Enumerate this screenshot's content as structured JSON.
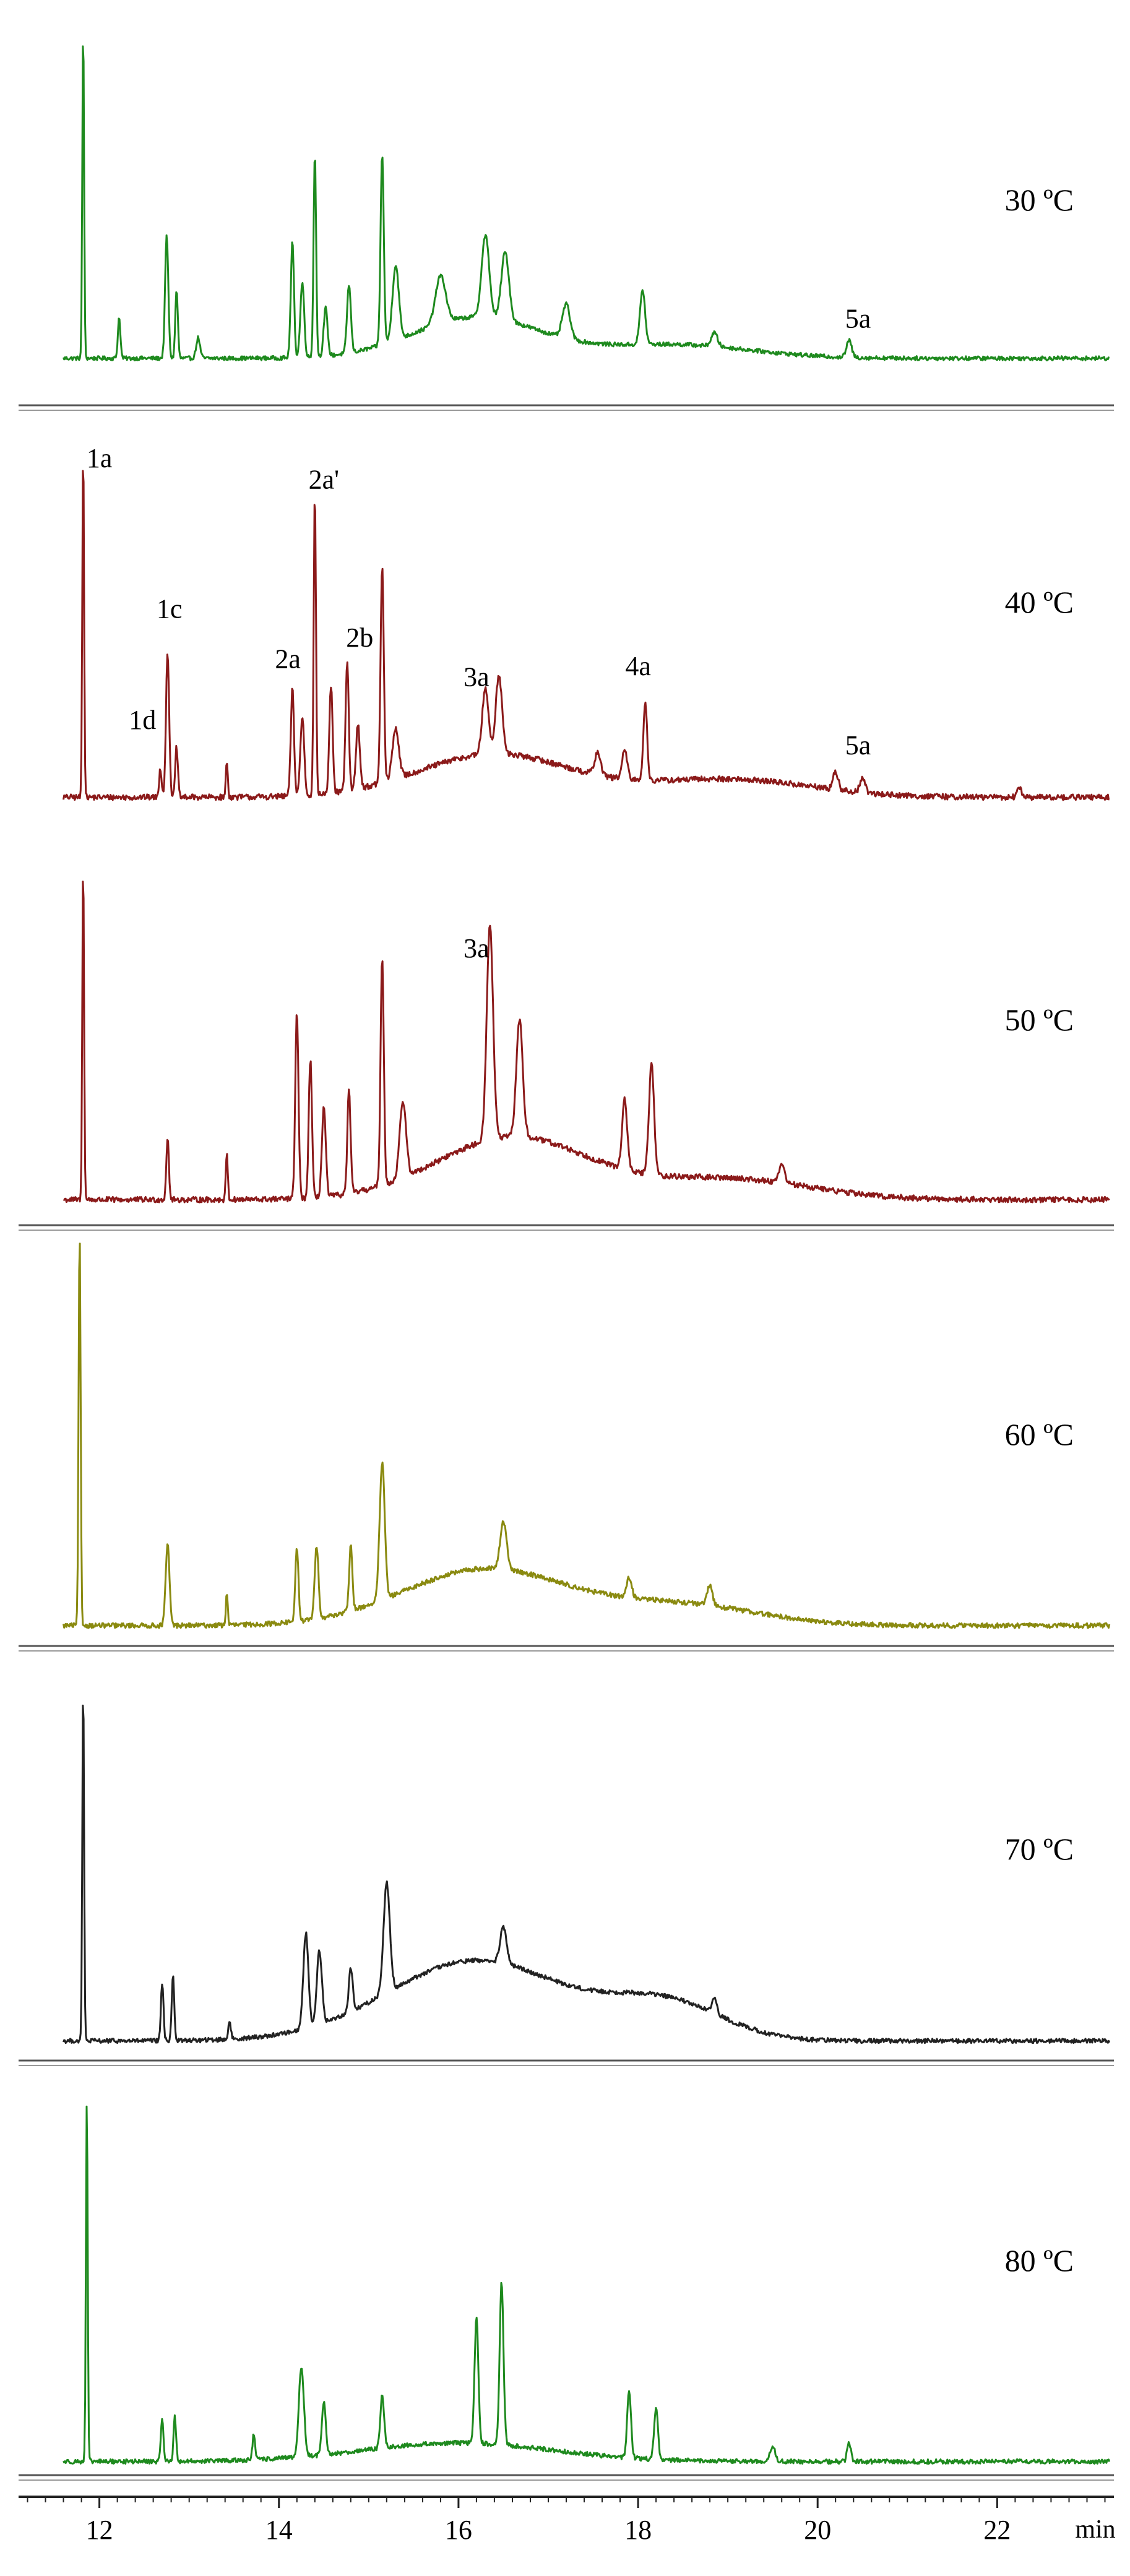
{
  "chart_data": {
    "type": "line",
    "xlabel": "",
    "x_unit": "min",
    "xlim": [
      11.1,
      23.3
    ],
    "x_ticks": [
      12,
      14,
      16,
      18,
      20,
      22
    ],
    "x_tick_labels": [
      "12",
      "14",
      "16",
      "18",
      "20",
      "22"
    ],
    "grid": false,
    "legend": "none",
    "panels": [
      {
        "label": "30 ºC",
        "color": "#1e8a1e",
        "baseline": 0.02,
        "noise": 0.006,
        "peaks": [
          {
            "t": 11.82,
            "h": 0.98,
            "w": 0.014
          },
          {
            "t": 12.22,
            "h": 0.12,
            "w": 0.02
          },
          {
            "t": 12.75,
            "h": 0.36,
            "w": 0.025
          },
          {
            "t": 12.86,
            "h": 0.2,
            "w": 0.02
          },
          {
            "t": 13.1,
            "h": 0.06,
            "w": 0.03
          },
          {
            "t": 14.15,
            "h": 0.34,
            "w": 0.025
          },
          {
            "t": 14.26,
            "h": 0.22,
            "w": 0.03
          },
          {
            "t": 14.4,
            "h": 0.6,
            "w": 0.02
          },
          {
            "t": 14.52,
            "h": 0.14,
            "w": 0.03
          },
          {
            "t": 14.78,
            "h": 0.2,
            "w": 0.03
          },
          {
            "t": 15.15,
            "h": 0.56,
            "w": 0.025
          },
          {
            "t": 15.3,
            "h": 0.22,
            "w": 0.05
          },
          {
            "t": 15.8,
            "h": 0.14,
            "w": 0.08
          },
          {
            "t": 16.3,
            "h": 0.24,
            "w": 0.06
          },
          {
            "t": 16.52,
            "h": 0.2,
            "w": 0.06
          },
          {
            "t": 17.2,
            "h": 0.1,
            "w": 0.06
          },
          {
            "t": 18.05,
            "h": 0.16,
            "w": 0.04
          },
          {
            "t": 18.85,
            "h": 0.04,
            "w": 0.05
          },
          {
            "t": 20.35,
            "h": 0.05,
            "w": 0.04
          }
        ],
        "humps": [
          {
            "t": 16.2,
            "h": 0.12,
            "w": 1.0
          },
          {
            "t": 18.4,
            "h": 0.04,
            "w": 1.2
          }
        ],
        "annotations": [
          {
            "text": "5a",
            "t": 20.45,
            "y": 0.11
          }
        ]
      },
      {
        "label": "40 ºC",
        "color": "#8b1a1a",
        "baseline": 0.02,
        "noise": 0.008,
        "peaks": [
          {
            "t": 11.82,
            "h": 0.98,
            "w": 0.014
          },
          {
            "t": 12.68,
            "h": 0.08,
            "w": 0.02
          },
          {
            "t": 12.76,
            "h": 0.4,
            "w": 0.025
          },
          {
            "t": 12.86,
            "h": 0.14,
            "w": 0.02
          },
          {
            "t": 13.42,
            "h": 0.1,
            "w": 0.015
          },
          {
            "t": 14.15,
            "h": 0.3,
            "w": 0.025
          },
          {
            "t": 14.26,
            "h": 0.22,
            "w": 0.03
          },
          {
            "t": 14.4,
            "h": 0.84,
            "w": 0.018
          },
          {
            "t": 14.58,
            "h": 0.3,
            "w": 0.025
          },
          {
            "t": 14.76,
            "h": 0.36,
            "w": 0.025
          },
          {
            "t": 14.88,
            "h": 0.18,
            "w": 0.03
          },
          {
            "t": 15.15,
            "h": 0.6,
            "w": 0.025
          },
          {
            "t": 15.3,
            "h": 0.14,
            "w": 0.05
          },
          {
            "t": 16.3,
            "h": 0.18,
            "w": 0.05
          },
          {
            "t": 16.45,
            "h": 0.22,
            "w": 0.05
          },
          {
            "t": 17.55,
            "h": 0.06,
            "w": 0.05
          },
          {
            "t": 17.85,
            "h": 0.08,
            "w": 0.04
          },
          {
            "t": 18.08,
            "h": 0.22,
            "w": 0.03
          },
          {
            "t": 20.2,
            "h": 0.05,
            "w": 0.04
          },
          {
            "t": 20.5,
            "h": 0.04,
            "w": 0.04
          },
          {
            "t": 22.25,
            "h": 0.03,
            "w": 0.03
          }
        ],
        "humps": [
          {
            "t": 16.4,
            "h": 0.12,
            "w": 1.2
          },
          {
            "t": 19.0,
            "h": 0.05,
            "w": 1.3
          }
        ],
        "annotations": [
          {
            "text": "1a",
            "t": 12.0,
            "y": 0.94
          },
          {
            "text": "2a'",
            "t": 14.5,
            "y": 0.88
          },
          {
            "text": "1c",
            "t": 12.78,
            "y": 0.52
          },
          {
            "text": "2b",
            "t": 14.9,
            "y": 0.44
          },
          {
            "text": "2a",
            "t": 14.1,
            "y": 0.38
          },
          {
            "text": "3a",
            "t": 16.2,
            "y": 0.33
          },
          {
            "text": "4a",
            "t": 18.0,
            "y": 0.36
          },
          {
            "text": "1d",
            "t": 12.48,
            "y": 0.21
          },
          {
            "text": "5a",
            "t": 20.45,
            "y": 0.14
          }
        ]
      },
      {
        "label": "50 ºC",
        "color": "#8b1a1a",
        "baseline": 0.02,
        "noise": 0.008,
        "peaks": [
          {
            "t": 11.82,
            "h": 0.98,
            "w": 0.014
          },
          {
            "t": 12.76,
            "h": 0.18,
            "w": 0.02
          },
          {
            "t": 13.42,
            "h": 0.14,
            "w": 0.015
          },
          {
            "t": 14.2,
            "h": 0.54,
            "w": 0.025
          },
          {
            "t": 14.35,
            "h": 0.4,
            "w": 0.025
          },
          {
            "t": 14.5,
            "h": 0.26,
            "w": 0.03
          },
          {
            "t": 14.78,
            "h": 0.3,
            "w": 0.025
          },
          {
            "t": 15.15,
            "h": 0.66,
            "w": 0.025
          },
          {
            "t": 15.38,
            "h": 0.22,
            "w": 0.05
          },
          {
            "t": 16.35,
            "h": 0.62,
            "w": 0.05
          },
          {
            "t": 16.68,
            "h": 0.34,
            "w": 0.05
          },
          {
            "t": 17.85,
            "h": 0.2,
            "w": 0.04
          },
          {
            "t": 18.15,
            "h": 0.32,
            "w": 0.04
          },
          {
            "t": 19.6,
            "h": 0.05,
            "w": 0.05
          }
        ],
        "humps": [
          {
            "t": 16.6,
            "h": 0.18,
            "w": 1.2
          },
          {
            "t": 19.0,
            "h": 0.06,
            "w": 1.3
          }
        ],
        "annotations": [
          {
            "text": "3a",
            "t": 16.2,
            "y": 0.72
          }
        ]
      },
      {
        "label": "60 ºC",
        "color": "#8a8a10",
        "baseline": 0.02,
        "noise": 0.006,
        "peaks": [
          {
            "t": 11.78,
            "h": 0.98,
            "w": 0.016
          },
          {
            "t": 12.76,
            "h": 0.2,
            "w": 0.03
          },
          {
            "t": 13.42,
            "h": 0.08,
            "w": 0.015
          },
          {
            "t": 14.2,
            "h": 0.18,
            "w": 0.025
          },
          {
            "t": 14.42,
            "h": 0.18,
            "w": 0.03
          },
          {
            "t": 14.8,
            "h": 0.16,
            "w": 0.025
          },
          {
            "t": 15.15,
            "h": 0.34,
            "w": 0.04
          },
          {
            "t": 16.5,
            "h": 0.12,
            "w": 0.05
          },
          {
            "t": 17.9,
            "h": 0.05,
            "w": 0.04
          },
          {
            "t": 18.8,
            "h": 0.05,
            "w": 0.04
          }
        ],
        "humps": [
          {
            "t": 16.3,
            "h": 0.14,
            "w": 1.3
          },
          {
            "t": 18.5,
            "h": 0.05,
            "w": 1.2
          }
        ],
        "annotations": []
      },
      {
        "label": "70 ºC",
        "color": "#222222",
        "baseline": 0.02,
        "noise": 0.006,
        "peaks": [
          {
            "t": 11.82,
            "h": 0.98,
            "w": 0.014
          },
          {
            "t": 12.7,
            "h": 0.16,
            "w": 0.02
          },
          {
            "t": 12.82,
            "h": 0.18,
            "w": 0.02
          },
          {
            "t": 13.45,
            "h": 0.05,
            "w": 0.02
          },
          {
            "t": 14.3,
            "h": 0.26,
            "w": 0.04
          },
          {
            "t": 14.45,
            "h": 0.2,
            "w": 0.04
          },
          {
            "t": 14.8,
            "h": 0.12,
            "w": 0.03
          },
          {
            "t": 15.2,
            "h": 0.3,
            "w": 0.05
          },
          {
            "t": 16.5,
            "h": 0.1,
            "w": 0.05
          },
          {
            "t": 18.85,
            "h": 0.04,
            "w": 0.04
          }
        ],
        "humps": [
          {
            "t": 16.2,
            "h": 0.22,
            "w": 1.4
          },
          {
            "t": 18.3,
            "h": 0.1,
            "w": 0.9
          }
        ],
        "annotations": []
      },
      {
        "label": "80 ºC",
        "color": "#1e8a1e",
        "baseline": 0.02,
        "noise": 0.006,
        "peaks": [
          {
            "t": 11.86,
            "h": 0.98,
            "w": 0.014
          },
          {
            "t": 12.7,
            "h": 0.12,
            "w": 0.02
          },
          {
            "t": 12.84,
            "h": 0.12,
            "w": 0.02
          },
          {
            "t": 13.72,
            "h": 0.07,
            "w": 0.02
          },
          {
            "t": 14.25,
            "h": 0.24,
            "w": 0.04
          },
          {
            "t": 14.5,
            "h": 0.14,
            "w": 0.03
          },
          {
            "t": 15.15,
            "h": 0.14,
            "w": 0.03
          },
          {
            "t": 16.2,
            "h": 0.34,
            "w": 0.03
          },
          {
            "t": 16.48,
            "h": 0.44,
            "w": 0.03
          },
          {
            "t": 17.9,
            "h": 0.18,
            "w": 0.03
          },
          {
            "t": 18.2,
            "h": 0.14,
            "w": 0.03
          },
          {
            "t": 19.5,
            "h": 0.04,
            "w": 0.04
          },
          {
            "t": 20.35,
            "h": 0.05,
            "w": 0.03
          }
        ],
        "humps": [
          {
            "t": 16.0,
            "h": 0.05,
            "w": 1.5
          }
        ],
        "annotations": []
      }
    ]
  }
}
